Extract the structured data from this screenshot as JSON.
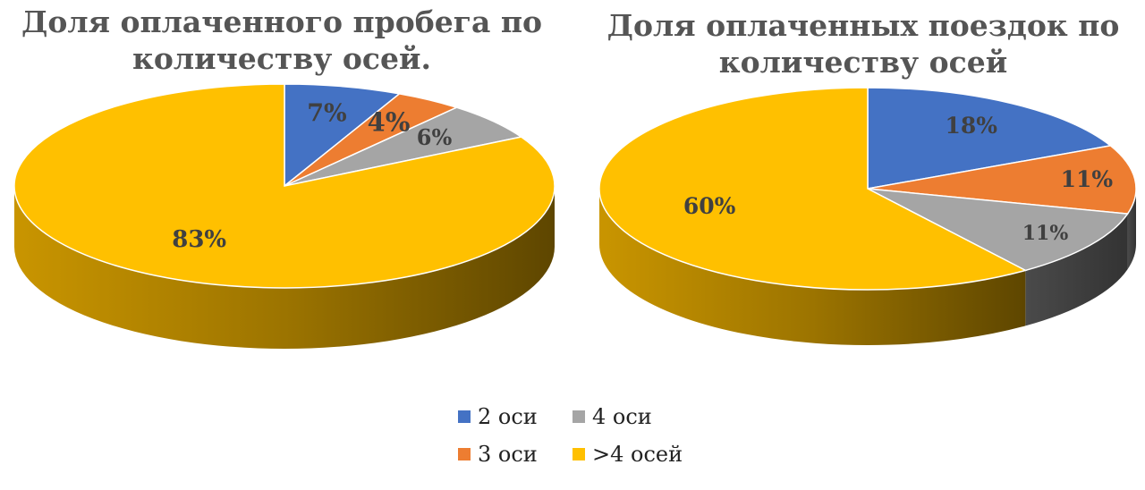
{
  "chart_data": [
    {
      "type": "pie",
      "title": "Доля оплаченного пробега по количеству осей.",
      "categories": [
        "2 оси",
        "3 оси",
        "4 оси",
        ">4 осей"
      ],
      "values": [
        7,
        4,
        6,
        83
      ],
      "labels": [
        "7%",
        "4%",
        "6%",
        "83%"
      ],
      "colors": [
        "#4472C4",
        "#ED7D31",
        "#A5A5A5",
        "#FFC000"
      ],
      "style": "3d"
    },
    {
      "type": "pie",
      "title": "Доля оплаченных поездок по количеству осей",
      "categories": [
        "2 оси",
        "3 оси",
        "4 оси",
        ">4 осей"
      ],
      "values": [
        18,
        11,
        11,
        60
      ],
      "labels": [
        "18%",
        "11%",
        "11%",
        "60%"
      ],
      "colors": [
        "#4472C4",
        "#ED7D31",
        "#A5A5A5",
        "#FFC000"
      ],
      "style": "3d"
    }
  ],
  "legend": {
    "items": [
      {
        "label": "2 оси",
        "color": "#4472C4"
      },
      {
        "label": "4 оси",
        "color": "#A5A5A5"
      },
      {
        "label": "3 оси",
        "color": "#ED7D31"
      },
      {
        "label": ">4 осей",
        "color": "#FFC000"
      }
    ],
    "placement": "bottom"
  }
}
